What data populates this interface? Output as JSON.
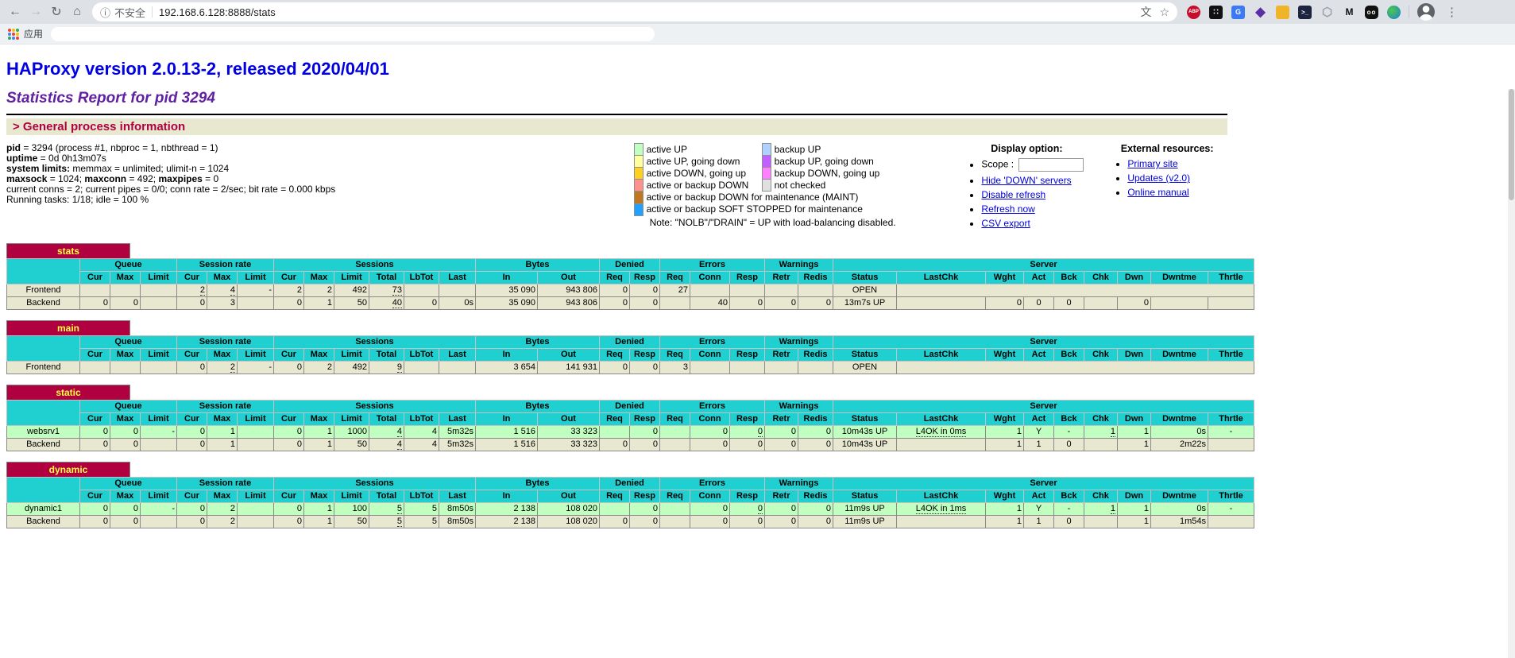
{
  "browser": {
    "security_label": "不安全",
    "url": "192.168.6.128:8888/stats",
    "apps_label": "应用",
    "abp_label": "ABP"
  },
  "page": {
    "h1": "HAProxy version 2.0.13-2, released 2020/04/01",
    "h2": "Statistics Report for pid 3294",
    "section_title": "> General process information",
    "process_info": [
      {
        "segs": [
          {
            "b": true,
            "t": "pid"
          },
          {
            "t": " = 3294 (process #1, nbproc = 1, nbthread = 1)"
          }
        ]
      },
      {
        "segs": [
          {
            "b": true,
            "t": "uptime"
          },
          {
            "t": " = 0d 0h13m07s"
          }
        ]
      },
      {
        "segs": [
          {
            "b": true,
            "t": "system limits:"
          },
          {
            "t": " memmax = unlimited; ulimit-n = 1024"
          }
        ]
      },
      {
        "segs": [
          {
            "b": true,
            "t": "maxsock"
          },
          {
            "t": " = 1024; "
          },
          {
            "b": true,
            "t": "maxconn"
          },
          {
            "t": " = 492; "
          },
          {
            "b": true,
            "t": "maxpipes"
          },
          {
            "t": " = 0"
          }
        ]
      },
      {
        "segs": [
          {
            "t": "current conns = 2; current pipes = 0/0; conn rate = 2/sec; bit rate = 0.000 kbps"
          }
        ]
      },
      {
        "segs": [
          {
            "t": "Running tasks: 1/18; idle = 100 %"
          }
        ]
      }
    ],
    "legend": {
      "left": [
        {
          "color": "#c0ffc0",
          "label": "active UP"
        },
        {
          "color": "#ffffa0",
          "label": "active UP, going down"
        },
        {
          "color": "#ffd020",
          "label": "active DOWN, going up"
        },
        {
          "color": "#ff9090",
          "label": "active or backup DOWN"
        },
        {
          "color": "#c07820",
          "label": "active or backup DOWN for maintenance (MAINT)"
        },
        {
          "color": "#20a0ff",
          "label": "active or backup SOFT STOPPED for maintenance"
        }
      ],
      "right": [
        {
          "color": "#b0d0ff",
          "label": "backup UP"
        },
        {
          "color": "#c060ff",
          "label": "backup UP, going down"
        },
        {
          "color": "#ff80ff",
          "label": "backup DOWN, going up"
        },
        {
          "color": "#e0e0e0",
          "label": "not checked"
        }
      ],
      "note": "Note: \"NOLB\"/\"DRAIN\" = UP with load-balancing disabled."
    },
    "display": {
      "title": "Display option:",
      "scope_label": "Scope :",
      "scope_value": "",
      "links": [
        "Hide 'DOWN' servers",
        "Disable refresh",
        "Refresh now",
        "CSV export"
      ]
    },
    "external": {
      "title": "External resources:",
      "links": [
        "Primary site",
        "Updates (v2.0)",
        "Online manual"
      ]
    }
  },
  "colors": {
    "table_header": "#20d0d0",
    "proxy_caption_bg": "#b00040",
    "proxy_caption_fg": "#ffff40",
    "row_default": "#e8e8d0",
    "row_active_up": "#c0ffc0"
  },
  "columns": {
    "groups": [
      {
        "label": "Queue",
        "span": 3
      },
      {
        "label": "Session rate",
        "span": 3
      },
      {
        "label": "Sessions",
        "span": 6
      },
      {
        "label": "Bytes",
        "span": 2
      },
      {
        "label": "Denied",
        "span": 2
      },
      {
        "label": "Errors",
        "span": 3
      },
      {
        "label": "Warnings",
        "span": 2
      },
      {
        "label": "Server",
        "span": 9
      }
    ],
    "subs": [
      "Cur",
      "Max",
      "Limit",
      "Cur",
      "Max",
      "Limit",
      "Cur",
      "Max",
      "Limit",
      "Total",
      "LbTot",
      "Last",
      "In",
      "Out",
      "Req",
      "Resp",
      "Req",
      "Conn",
      "Resp",
      "Retr",
      "Redis",
      "Status",
      "LastChk",
      "Wght",
      "Act",
      "Bck",
      "Chk",
      "Dwn",
      "Dwntme",
      "Thrtle"
    ],
    "aligns": [
      "r",
      "r",
      "r",
      "r",
      "r",
      "r",
      "r",
      "r",
      "r",
      "r",
      "r",
      "r",
      "r",
      "r",
      "r",
      "r",
      "r",
      "r",
      "r",
      "r",
      "r",
      "c",
      "c",
      "r",
      "c",
      "c",
      "r",
      "r",
      "r",
      "c"
    ],
    "widths": [
      92,
      38,
      38,
      46,
      38,
      38,
      46,
      38,
      38,
      44,
      44,
      44,
      46,
      78,
      78,
      38,
      38,
      38,
      50,
      44,
      42,
      44,
      80,
      112,
      48,
      38,
      38,
      42,
      42,
      72,
      58
    ]
  },
  "tables": [
    {
      "name": "stats",
      "rows": [
        {
          "name": "Frontend",
          "cls": "frontend",
          "fe": true,
          "cells": [
            "",
            "",
            "",
            {
              "v": "2",
              "u": true
            },
            {
              "v": "4",
              "u": true
            },
            "-",
            "2",
            "2",
            "492",
            {
              "v": "73",
              "u": true
            },
            "",
            "",
            "35 090",
            "943 806",
            "0",
            "0",
            "27",
            "",
            "",
            "",
            "",
            "OPEN"
          ]
        },
        {
          "name": "Backend",
          "cls": "backend",
          "cells": [
            "0",
            "0",
            "",
            "0",
            "3",
            "",
            "0",
            "1",
            "50",
            {
              "v": "40",
              "u": true
            },
            "0",
            "0s",
            "35 090",
            "943 806",
            "0",
            "0",
            "",
            "40",
            "0",
            "0",
            "0",
            "13m7s UP",
            "",
            "0",
            "0",
            "0",
            "",
            "0",
            "",
            ""
          ]
        }
      ]
    },
    {
      "name": "main",
      "rows": [
        {
          "name": "Frontend",
          "cls": "frontend",
          "fe": true,
          "cells": [
            "",
            "",
            "",
            "0",
            {
              "v": "2",
              "u": true
            },
            "-",
            "0",
            "2",
            "492",
            {
              "v": "9",
              "u": true
            },
            "",
            "",
            "3 654",
            "141 931",
            "0",
            "0",
            "3",
            "",
            "",
            "",
            "",
            "OPEN"
          ]
        }
      ]
    },
    {
      "name": "static",
      "rows": [
        {
          "name": "websrv1",
          "cls": "active_up",
          "cells": [
            "0",
            "0",
            "-",
            "0",
            "1",
            "",
            "0",
            "1",
            "1000",
            {
              "v": "4",
              "u": true
            },
            "4",
            "5m32s",
            "1 516",
            "33 323",
            "",
            "0",
            "",
            "0",
            {
              "v": "0",
              "u": true
            },
            "0",
            "0",
            "10m43s UP",
            {
              "v": "L4OK in 0ms",
              "u": true
            },
            "1",
            "Y",
            "-",
            {
              "v": "1",
              "u": true
            },
            "1",
            "0s",
            "-"
          ]
        },
        {
          "name": "Backend",
          "cls": "backend",
          "cells": [
            "0",
            "0",
            "",
            "0",
            "1",
            "",
            "0",
            "1",
            "50",
            {
              "v": "4",
              "u": true
            },
            "4",
            "5m32s",
            "1 516",
            "33 323",
            "0",
            "0",
            "",
            "0",
            "0",
            "0",
            "0",
            "10m43s UP",
            "",
            "1",
            "1",
            "0",
            "",
            "1",
            "2m22s",
            ""
          ]
        }
      ]
    },
    {
      "name": "dynamic",
      "rows": [
        {
          "name": "dynamic1",
          "cls": "active_up",
          "cells": [
            "0",
            "0",
            "-",
            "0",
            "2",
            "",
            "0",
            "1",
            "100",
            {
              "v": "5",
              "u": true
            },
            "5",
            "8m50s",
            "2 138",
            "108 020",
            "",
            "0",
            "",
            "0",
            {
              "v": "0",
              "u": true
            },
            "0",
            "0",
            "11m9s UP",
            {
              "v": "L4OK in 1ms",
              "u": true
            },
            "1",
            "Y",
            "-",
            {
              "v": "1",
              "u": true
            },
            "1",
            "0s",
            "-"
          ]
        },
        {
          "name": "Backend",
          "cls": "backend",
          "cells": [
            "0",
            "0",
            "",
            "0",
            "2",
            "",
            "0",
            "1",
            "50",
            {
              "v": "5",
              "u": true
            },
            "5",
            "8m50s",
            "2 138",
            "108 020",
            "0",
            "0",
            "",
            "0",
            "0",
            "0",
            "0",
            "11m9s UP",
            "",
            "1",
            "1",
            "0",
            "",
            "1",
            "1m54s",
            ""
          ]
        }
      ]
    }
  ]
}
